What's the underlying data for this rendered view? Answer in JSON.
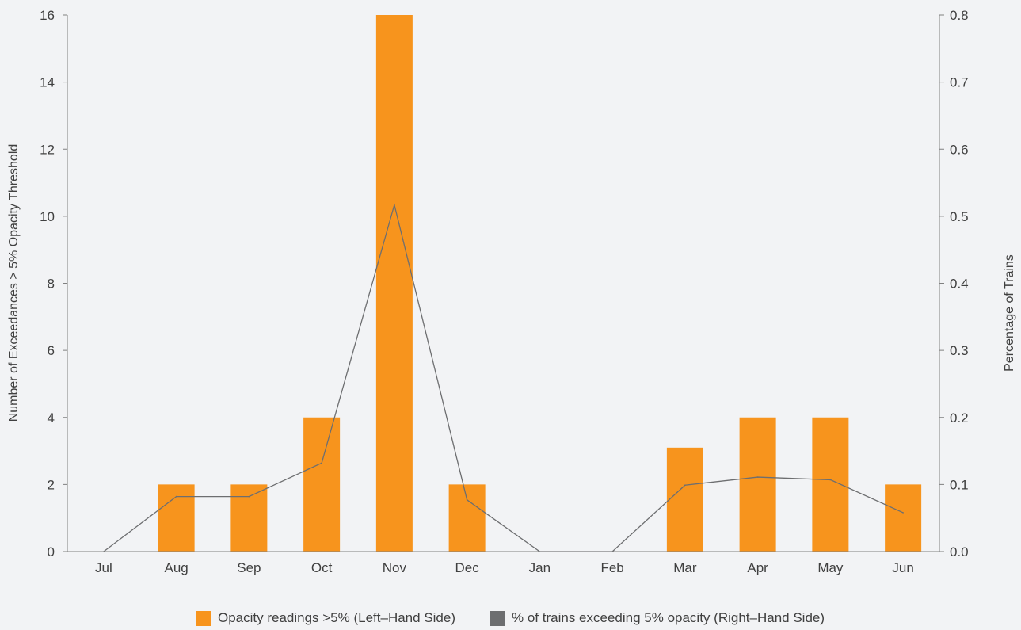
{
  "chart_data": {
    "type": "bar",
    "categories": [
      "Jul",
      "Aug",
      "Sep",
      "Oct",
      "Nov",
      "Dec",
      "Jan",
      "Feb",
      "Mar",
      "Apr",
      "May",
      "Jun"
    ],
    "series": [
      {
        "name": "Opacity readings >5% (Left–Hand Side)",
        "type": "bar",
        "axis": "left",
        "color": "#f7941d",
        "values": [
          0,
          2,
          2,
          4,
          16,
          2,
          0,
          0,
          3.1,
          4,
          4,
          2
        ]
      },
      {
        "name": "% of trains exceeding 5% opacity (Right–Hand Side)",
        "type": "line",
        "axis": "right",
        "color": "#6d6e70",
        "values": [
          0.0,
          0.082,
          0.082,
          0.132,
          0.517,
          0.077,
          0.0,
          0.0,
          0.099,
          0.111,
          0.107,
          0.058
        ]
      }
    ],
    "left_axis": {
      "label": "Number of Exceedances > 5% Opacity Threshold",
      "ylim": [
        0,
        16
      ],
      "ticks": [
        "0",
        "2",
        "4",
        "6",
        "8",
        "10",
        "12",
        "14",
        "16"
      ]
    },
    "right_axis": {
      "label": "Percentage of Trains",
      "ylim": [
        0,
        0.8
      ],
      "ticks": [
        "0.0",
        "0.1",
        "0.2",
        "0.3",
        "0.4",
        "0.5",
        "0.6",
        "0.7",
        "0.8"
      ]
    },
    "grid": false,
    "legend_position": "bottom-center"
  }
}
